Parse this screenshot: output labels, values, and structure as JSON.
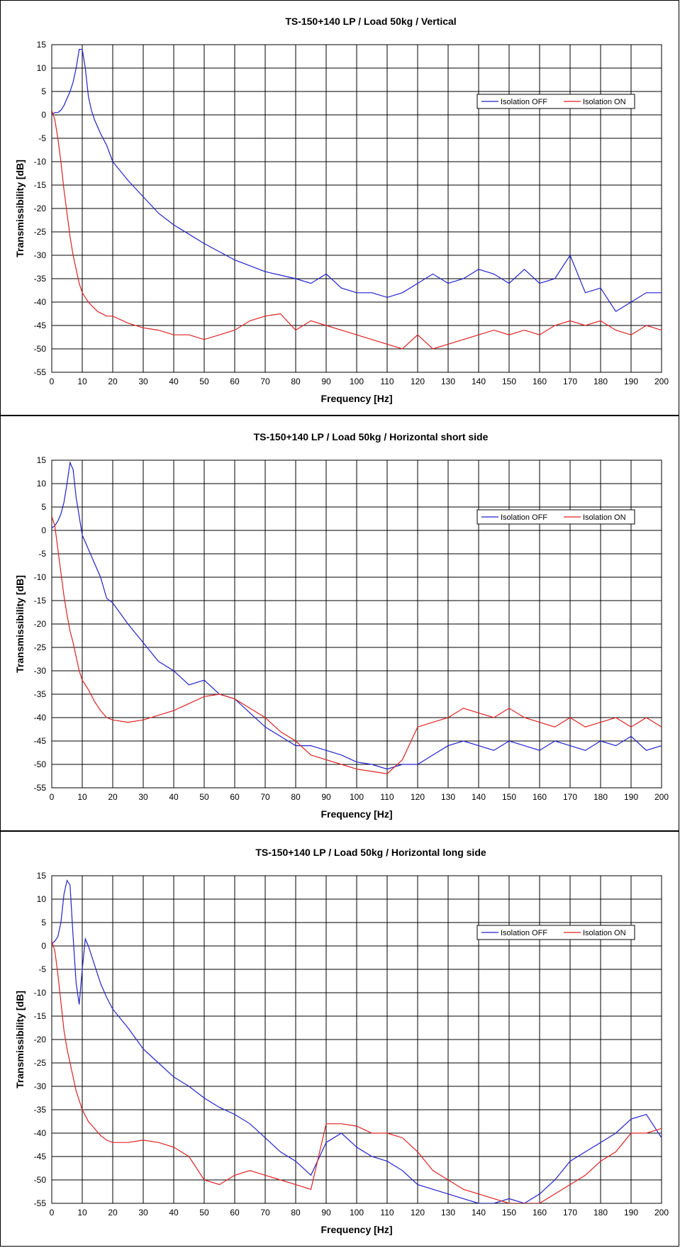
{
  "chart_data": [
    {
      "type": "line",
      "title": "TS-150+140 LP / Load 50kg / Vertical",
      "xlabel": "Frequency [Hz]",
      "ylabel": "Transmissibility [dB]",
      "xlim": [
        0,
        200
      ],
      "ylim": [
        -55,
        15
      ],
      "x_ticks": [
        "0",
        "10",
        "20",
        "30",
        "40",
        "50",
        "60",
        "70",
        "80",
        "90",
        "100",
        "110",
        "120",
        "130",
        "140",
        "150",
        "160",
        "170",
        "180",
        "190",
        "200"
      ],
      "y_ticks": [
        "15",
        "10",
        "5",
        "0",
        "-5",
        "-10",
        "-15",
        "-20",
        "-25",
        "-30",
        "-35",
        "-40",
        "-45",
        "-50",
        "-55"
      ],
      "grid": true,
      "legend_position": "top-right",
      "series": [
        {
          "name": "Isolation OFF",
          "color": "#2222cc",
          "x": [
            0,
            1,
            2,
            3,
            4,
            5,
            6,
            7,
            8,
            9,
            10,
            11,
            12,
            13,
            14,
            15,
            16,
            18,
            20,
            25,
            30,
            35,
            40,
            50,
            60,
            70,
            80,
            85,
            90,
            95,
            100,
            105,
            110,
            115,
            120,
            125,
            130,
            135,
            140,
            145,
            150,
            155,
            160,
            165,
            170,
            175,
            180,
            185,
            190,
            195,
            200
          ],
          "y": [
            0,
            0.5,
            0.5,
            1,
            2,
            3.5,
            5,
            7,
            10,
            14,
            14,
            10,
            4,
            1,
            -1,
            -2.5,
            -4,
            -6.5,
            -10,
            -14,
            -17.5,
            -21,
            -23.5,
            -27.5,
            -31,
            -33.5,
            -35,
            -36,
            -34,
            -37,
            -38,
            -38,
            -39,
            -38,
            -36,
            -34,
            -36,
            -35,
            -33,
            -34,
            -36,
            -33,
            -36,
            -35,
            -30,
            -38,
            -37,
            -42,
            -40,
            -38,
            -38
          ]
        },
        {
          "name": "Isolation ON",
          "color": "#dd2222",
          "x": [
            0,
            1,
            2,
            3,
            4,
            5,
            6,
            7,
            8,
            9,
            10,
            12,
            15,
            18,
            20,
            25,
            30,
            35,
            40,
            45,
            50,
            55,
            60,
            65,
            70,
            75,
            80,
            85,
            90,
            95,
            100,
            105,
            110,
            115,
            120,
            125,
            130,
            135,
            140,
            145,
            150,
            155,
            160,
            165,
            170,
            175,
            180,
            185,
            190,
            195,
            200
          ],
          "y": [
            1,
            -1,
            -5,
            -10,
            -16,
            -21,
            -26,
            -30,
            -33,
            -36,
            -38,
            -40,
            -42,
            -43,
            -43,
            -44.5,
            -45.5,
            -46,
            -47,
            -47,
            -48,
            -47,
            -46,
            -44,
            -43,
            -42.5,
            -46,
            -44,
            -45,
            -46,
            -47,
            -48,
            -49,
            -50,
            -47,
            -50,
            -49,
            -48,
            -47,
            -46,
            -47,
            -46,
            -47,
            -45,
            -44,
            -45,
            -44,
            -46,
            -47,
            -45,
            -46
          ]
        }
      ]
    },
    {
      "type": "line",
      "title": "TS-150+140 LP / Load 50kg / Horizontal short side",
      "xlabel": "Frequency [Hz]",
      "ylabel": "Transmissibility [dB]",
      "xlim": [
        0,
        200
      ],
      "ylim": [
        -55,
        15
      ],
      "x_ticks": [
        "0",
        "10",
        "20",
        "30",
        "40",
        "50",
        "60",
        "70",
        "80",
        "90",
        "100",
        "110",
        "120",
        "130",
        "140",
        "150",
        "160",
        "170",
        "180",
        "190",
        "200"
      ],
      "y_ticks": [
        "15",
        "10",
        "5",
        "0",
        "-5",
        "-10",
        "-15",
        "-20",
        "-25",
        "-30",
        "-35",
        "-40",
        "-45",
        "-50",
        "-55"
      ],
      "grid": true,
      "legend_position": "top-right",
      "series": [
        {
          "name": "Isolation OFF",
          "color": "#2222cc",
          "x": [
            0,
            1,
            2,
            3,
            4,
            5,
            6,
            7,
            8,
            9,
            10,
            11,
            12,
            14,
            16,
            18,
            20,
            25,
            30,
            35,
            40,
            45,
            50,
            55,
            60,
            65,
            70,
            75,
            80,
            85,
            90,
            95,
            100,
            105,
            110,
            115,
            120,
            125,
            130,
            135,
            140,
            145,
            150,
            155,
            160,
            165,
            170,
            175,
            180,
            185,
            190,
            195,
            200
          ],
          "y": [
            0.5,
            1,
            2,
            3.5,
            6,
            10,
            14.5,
            13,
            7,
            3,
            -1,
            -2.5,
            -4,
            -7,
            -10,
            -14.5,
            -15.5,
            -20,
            -24,
            -28,
            -30,
            -33,
            -32,
            -35,
            -36,
            -39,
            -42,
            -44,
            -46,
            -46,
            -47,
            -48,
            -49.5,
            -50,
            -51,
            -50,
            -50,
            -48,
            -46,
            -45,
            -46,
            -47,
            -45,
            -46,
            -47,
            -45,
            -46,
            -47,
            -45,
            -46,
            -44,
            -47,
            -46
          ]
        },
        {
          "name": "Isolation ON",
          "color": "#dd2222",
          "x": [
            0,
            1,
            2,
            3,
            4,
            5,
            6,
            7,
            8,
            9,
            10,
            12,
            14,
            16,
            18,
            20,
            25,
            30,
            35,
            40,
            45,
            50,
            55,
            60,
            65,
            70,
            75,
            80,
            85,
            90,
            95,
            100,
            105,
            110,
            115,
            120,
            125,
            130,
            135,
            140,
            145,
            150,
            155,
            160,
            165,
            170,
            175,
            180,
            185,
            190,
            195,
            200
          ],
          "y": [
            3,
            1,
            -4,
            -9,
            -14,
            -18,
            -21.5,
            -24,
            -27,
            -30,
            -32,
            -34,
            -36.5,
            -38.5,
            -40,
            -40.5,
            -41,
            -40.5,
            -39.5,
            -38.5,
            -37,
            -35.5,
            -35,
            -36,
            -38,
            -40,
            -43,
            -45,
            -48,
            -49,
            -50,
            -51,
            -51.5,
            -52,
            -49,
            -42,
            -41,
            -40,
            -38,
            -39,
            -40,
            -38,
            -40,
            -41,
            -42,
            -40,
            -42,
            -41,
            -40,
            -42,
            -40,
            -42
          ]
        }
      ]
    },
    {
      "type": "line",
      "title": "TS-150+140 LP / Load 50kg / Horizontal long side",
      "xlabel": "Frequency [Hz]",
      "ylabel": "Transmissibility [dB]",
      "xlim": [
        0,
        200
      ],
      "ylim": [
        -55,
        15
      ],
      "x_ticks": [
        "0",
        "10",
        "20",
        "30",
        "40",
        "50",
        "60",
        "70",
        "80",
        "90",
        "100",
        "110",
        "120",
        "130",
        "140",
        "150",
        "160",
        "170",
        "180",
        "190",
        "200"
      ],
      "y_ticks": [
        "15",
        "10",
        "5",
        "0",
        "-5",
        "-10",
        "-15",
        "-20",
        "-25",
        "-30",
        "-35",
        "-40",
        "-45",
        "-50",
        "-55"
      ],
      "grid": true,
      "legend_position": "top-right",
      "series": [
        {
          "name": "Isolation OFF",
          "color": "#2222cc",
          "x": [
            0,
            1,
            2,
            3,
            4,
            5,
            6,
            7,
            8,
            9,
            10,
            11,
            12,
            14,
            16,
            18,
            20,
            25,
            30,
            35,
            40,
            45,
            50,
            55,
            60,
            65,
            70,
            75,
            80,
            85,
            90,
            95,
            100,
            105,
            110,
            115,
            120,
            125,
            130,
            135,
            140,
            145,
            150,
            155,
            160,
            165,
            170,
            175,
            180,
            185,
            190,
            195,
            200
          ],
          "y": [
            0.5,
            1,
            2,
            5,
            11,
            14,
            13,
            2,
            -8,
            -12.5,
            -5,
            1.5,
            0,
            -4,
            -8,
            -11,
            -13.5,
            -17.5,
            -22,
            -25,
            -28,
            -30,
            -32.5,
            -34.5,
            -36,
            -38,
            -41,
            -44,
            -46,
            -49,
            -42,
            -40,
            -43,
            -45,
            -46,
            -48,
            -51,
            -52,
            -53,
            -54,
            -55,
            -55,
            -54,
            -55,
            -53,
            -50,
            -46,
            -44,
            -42,
            -40,
            -37,
            -36,
            -41
          ]
        },
        {
          "name": "Isolation ON",
          "color": "#dd2222",
          "x": [
            0,
            1,
            2,
            3,
            4,
            5,
            6,
            7,
            8,
            9,
            10,
            12,
            14,
            16,
            18,
            20,
            25,
            30,
            35,
            40,
            45,
            50,
            55,
            60,
            65,
            70,
            75,
            80,
            85,
            90,
            95,
            100,
            105,
            110,
            115,
            120,
            125,
            130,
            135,
            140,
            145,
            150,
            155,
            160,
            165,
            170,
            175,
            180,
            185,
            190,
            195,
            200
          ],
          "y": [
            1,
            -1,
            -6,
            -12,
            -18,
            -22,
            -25,
            -28,
            -31,
            -33,
            -35,
            -37.5,
            -39,
            -40.5,
            -41.5,
            -42,
            -42,
            -41.5,
            -42,
            -43,
            -45,
            -50,
            -51,
            -49,
            -48,
            -49,
            -50,
            -51,
            -52,
            -38,
            -38,
            -38.5,
            -40,
            -40,
            -41,
            -44,
            -48,
            -50,
            -52,
            -53,
            -54,
            -55,
            -55,
            -55,
            -53,
            -51,
            -49,
            -46,
            -44,
            -40,
            -40,
            -39
          ]
        }
      ]
    }
  ]
}
